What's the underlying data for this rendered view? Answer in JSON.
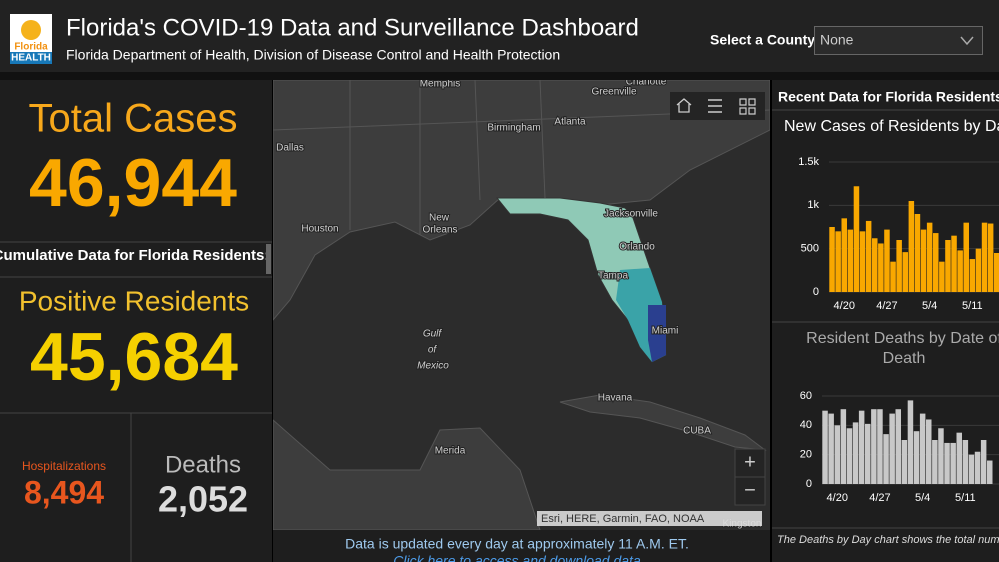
{
  "header": {
    "logo_top": "Florida",
    "logo_bottom": "HEALTH",
    "title": "Florida's COVID-19 Data and Surveillance Dashboard",
    "subtitle": "Florida Department of Health, Division of Disease Control and Health Protection",
    "county_label": "Select a County",
    "county_value": "None"
  },
  "left": {
    "total_label": "Total Cases",
    "total_value": "46,944",
    "cumulative_heading": "Cumulative Data for Florida Residents:",
    "positive_label": "Positive Residents",
    "positive_value": "45,684",
    "hosp_label": "Hospitalizations",
    "hosp_value": "8,494",
    "deaths_label": "Deaths",
    "deaths_value": "2,052"
  },
  "map": {
    "labels": [
      "Memphis",
      "Greenville",
      "Charlotte",
      "Dallas",
      "Birmingham",
      "Atlanta",
      "Houston",
      "New",
      "Orleans",
      "Jacksonville",
      "Orlando",
      "Tampa",
      "Miami",
      "Gulf",
      "of",
      "Mexico",
      "Havana",
      "CUBA",
      "Merida",
      "Kingston"
    ],
    "attribution": "Esri, HERE, Garmin, FAO, NOAA",
    "zoom_in": "+",
    "zoom_out": "−",
    "footer": "Data is updated every day at approximately 11 A.M. ET.",
    "link": "Click here to access and download data"
  },
  "right": {
    "heading": "Recent Data for Florida Residents",
    "footnote": "The Deaths by Day chart shows the total number of Florida residents with confirmed"
  },
  "chart_data": [
    {
      "type": "bar",
      "title": "New Cases of Residents by Day",
      "color": "#f9a800",
      "categories": [
        null,
        null,
        "4/20",
        null,
        null,
        null,
        null,
        null,
        null,
        "4/27",
        null,
        null,
        null,
        null,
        null,
        null,
        "5/4",
        null,
        null,
        null,
        null,
        null,
        null,
        "5/11",
        null,
        null,
        null,
        null
      ],
      "values": [
        750,
        700,
        850,
        720,
        1220,
        700,
        820,
        620,
        560,
        720,
        350,
        600,
        460,
        1050,
        900,
        720,
        800,
        680,
        350,
        600,
        650,
        480,
        800,
        380,
        500,
        800,
        790,
        450
      ],
      "ylim": [
        0,
        1500
      ],
      "yticks": [
        0,
        500,
        {
          "value": 1000,
          "label": "1k"
        },
        {
          "value": 1500,
          "label": "1.5k"
        }
      ]
    },
    {
      "type": "bar",
      "title": "Resident Deaths by Date of Death",
      "color": "#c8c8c8",
      "categories": [
        null,
        null,
        "4/20",
        null,
        null,
        null,
        null,
        null,
        null,
        "4/27",
        null,
        null,
        null,
        null,
        null,
        null,
        "5/4",
        null,
        null,
        null,
        null,
        null,
        null,
        "5/11",
        null,
        null,
        null,
        null
      ],
      "values": [
        50,
        48,
        40,
        51,
        38,
        42,
        50,
        41,
        51,
        51,
        34,
        48,
        51,
        30,
        57,
        36,
        48,
        44,
        30,
        38,
        28,
        28,
        35,
        30,
        20,
        22,
        30,
        16
      ],
      "ylim": [
        0,
        60
      ],
      "yticks": [
        0,
        20,
        40,
        60
      ]
    }
  ]
}
